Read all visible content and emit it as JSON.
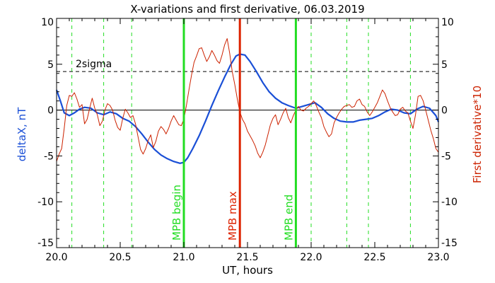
{
  "chart_data": {
    "type": "line",
    "title": "X-variations and first derivative, 06.03.2019",
    "xlabel": "UT, hours",
    "ylabel_left": "deltaX, nT",
    "ylabel_right": "First derivative*10",
    "xlim": [
      20.0,
      23.0
    ],
    "ylim": [
      -15,
      10
    ],
    "xticks": [
      "20.0",
      "20.5",
      "21.0",
      "21.5",
      "22.0",
      "22.5",
      "23.0"
    ],
    "xtick_values": [
      20.0,
      20.5,
      21.0,
      21.5,
      22.0,
      22.5,
      23.0
    ],
    "yticks": [
      "-15",
      "-10",
      "-5",
      "0",
      "5",
      "10"
    ],
    "ytick_values": [
      -15,
      -10,
      -5,
      0,
      5,
      10
    ],
    "threshold": {
      "label": "2sigma",
      "y": 4.2
    },
    "markers": [
      {
        "label": "MPB begin",
        "x": 21.0,
        "color": "#22dd22"
      },
      {
        "label": "MPB max",
        "x": 21.44,
        "color": "#dd2200"
      },
      {
        "label": "MPB end",
        "x": 21.88,
        "color": "#22dd22"
      }
    ],
    "dashed_verticals": [
      20.12,
      20.37,
      20.59,
      21.0,
      21.88,
      22.0,
      22.28,
      22.45,
      22.78
    ],
    "series": [
      {
        "axis": "left",
        "color": "#1a4fd6",
        "x": [
          20.0,
          20.03,
          20.06,
          20.1,
          20.14,
          20.18,
          20.22,
          20.27,
          20.32,
          20.37,
          20.42,
          20.47,
          20.52,
          20.57,
          20.62,
          20.67,
          20.72,
          20.77,
          20.82,
          20.87,
          20.92,
          20.97,
          21.0,
          21.03,
          21.07,
          21.12,
          21.17,
          21.22,
          21.27,
          21.32,
          21.37,
          21.41,
          21.44,
          21.48,
          21.52,
          21.57,
          21.62,
          21.67,
          21.72,
          21.77,
          21.82,
          21.88,
          21.93,
          21.98,
          22.03,
          22.08,
          22.13,
          22.18,
          22.23,
          22.28,
          22.33,
          22.38,
          22.43,
          22.48,
          22.53,
          22.58,
          22.63,
          22.68,
          22.73,
          22.78,
          22.83,
          22.88,
          22.93,
          22.98,
          23.0
        ],
        "values": [
          2.2,
          1.0,
          -0.3,
          -0.6,
          -0.3,
          0.1,
          0.3,
          0.2,
          -0.3,
          -0.5,
          -0.2,
          -0.4,
          -0.9,
          -1.2,
          -1.8,
          -2.6,
          -3.5,
          -4.3,
          -4.9,
          -5.3,
          -5.6,
          -5.8,
          -5.7,
          -5.2,
          -4.2,
          -2.8,
          -1.2,
          0.5,
          2.1,
          3.6,
          5.0,
          5.9,
          6.1,
          6.0,
          5.3,
          4.2,
          3.0,
          2.0,
          1.3,
          0.8,
          0.5,
          0.2,
          0.4,
          0.6,
          0.8,
          0.3,
          -0.4,
          -0.9,
          -1.2,
          -1.3,
          -1.3,
          -1.1,
          -1.0,
          -0.9,
          -0.6,
          -0.2,
          0.1,
          0.0,
          -0.3,
          -0.4,
          0.1,
          0.4,
          0.2,
          -0.6,
          -1.3
        ]
      },
      {
        "axis": "right",
        "color": "#cc2200",
        "x": [
          20.0,
          20.02,
          20.04,
          20.06,
          20.08,
          20.1,
          20.12,
          20.14,
          20.16,
          20.18,
          20.2,
          20.22,
          20.24,
          20.26,
          20.28,
          20.3,
          20.32,
          20.34,
          20.36,
          20.38,
          20.4,
          20.42,
          20.44,
          20.46,
          20.48,
          20.5,
          20.52,
          20.54,
          20.56,
          20.58,
          20.6,
          20.62,
          20.64,
          20.66,
          20.68,
          20.7,
          20.72,
          20.74,
          20.76,
          20.78,
          20.8,
          20.82,
          20.84,
          20.86,
          20.88,
          20.9,
          20.92,
          20.94,
          20.96,
          20.98,
          21.0,
          21.02,
          21.04,
          21.06,
          21.08,
          21.1,
          21.12,
          21.14,
          21.16,
          21.18,
          21.2,
          21.22,
          21.24,
          21.26,
          21.28,
          21.3,
          21.32,
          21.34,
          21.36,
          21.38,
          21.4,
          21.42,
          21.44,
          21.46,
          21.48,
          21.5,
          21.52,
          21.54,
          21.56,
          21.58,
          21.6,
          21.62,
          21.64,
          21.66,
          21.68,
          21.7,
          21.72,
          21.74,
          21.76,
          21.78,
          21.8,
          21.82,
          21.84,
          21.86,
          21.88,
          21.9,
          21.92,
          21.94,
          21.96,
          21.98,
          22.0,
          22.02,
          22.04,
          22.06,
          22.08,
          22.1,
          22.12,
          22.14,
          22.16,
          22.18,
          22.2,
          22.22,
          22.24,
          22.26,
          22.28,
          22.3,
          22.32,
          22.34,
          22.36,
          22.38,
          22.4,
          22.42,
          22.44,
          22.46,
          22.48,
          22.5,
          22.52,
          22.54,
          22.56,
          22.58,
          22.6,
          22.62,
          22.64,
          22.66,
          22.68,
          22.7,
          22.72,
          22.74,
          22.76,
          22.78,
          22.8,
          22.82,
          22.84,
          22.86,
          22.88,
          22.9,
          22.92,
          22.94,
          22.96,
          22.98,
          23.0
        ],
        "values": [
          -5.6,
          -4.8,
          -4.2,
          -2.0,
          0.5,
          1.6,
          1.5,
          1.9,
          1.2,
          0.3,
          0.6,
          -1.5,
          -1.0,
          0.2,
          1.3,
          0.2,
          -0.5,
          -1.7,
          -1.2,
          0.0,
          0.7,
          0.5,
          0.0,
          -1.1,
          -1.9,
          -2.2,
          -0.9,
          0.1,
          -0.3,
          -0.8,
          -0.6,
          -1.5,
          -2.9,
          -4.3,
          -4.8,
          -4.2,
          -3.3,
          -2.7,
          -4.1,
          -3.4,
          -2.3,
          -1.8,
          -2.1,
          -2.6,
          -2.0,
          -1.2,
          -0.6,
          -1.1,
          -1.6,
          -1.7,
          -1.0,
          0.5,
          2.2,
          3.8,
          5.2,
          5.9,
          6.7,
          6.8,
          6.0,
          5.3,
          5.8,
          6.5,
          6.0,
          5.4,
          5.1,
          6.0,
          7.1,
          7.8,
          6.2,
          4.2,
          2.8,
          1.2,
          -0.2,
          -1.0,
          -1.5,
          -2.3,
          -2.8,
          -3.3,
          -3.9,
          -4.7,
          -5.2,
          -4.6,
          -3.8,
          -2.7,
          -1.6,
          -0.9,
          -0.5,
          -1.6,
          -1.0,
          -0.3,
          0.2,
          -0.8,
          -1.4,
          -0.6,
          0.0,
          0.4,
          0.0,
          -0.1,
          0.2,
          0.4,
          0.7,
          1.0,
          0.5,
          -0.2,
          -0.8,
          -1.8,
          -2.4,
          -2.9,
          -2.6,
          -1.4,
          -0.8,
          -0.3,
          0.1,
          0.4,
          0.5,
          0.6,
          0.3,
          0.4,
          1.0,
          1.2,
          0.6,
          0.4,
          -0.2,
          -0.6,
          -0.2,
          0.3,
          0.8,
          1.5,
          2.2,
          1.8,
          1.0,
          0.3,
          -0.2,
          -0.6,
          -0.5,
          0.1,
          0.3,
          -0.1,
          -0.3,
          -1.2,
          -2.0,
          -0.5,
          1.5,
          1.6,
          1.0,
          0.0,
          -1.1,
          -2.2,
          -3.1,
          -4.2,
          -4.6
        ]
      }
    ]
  }
}
